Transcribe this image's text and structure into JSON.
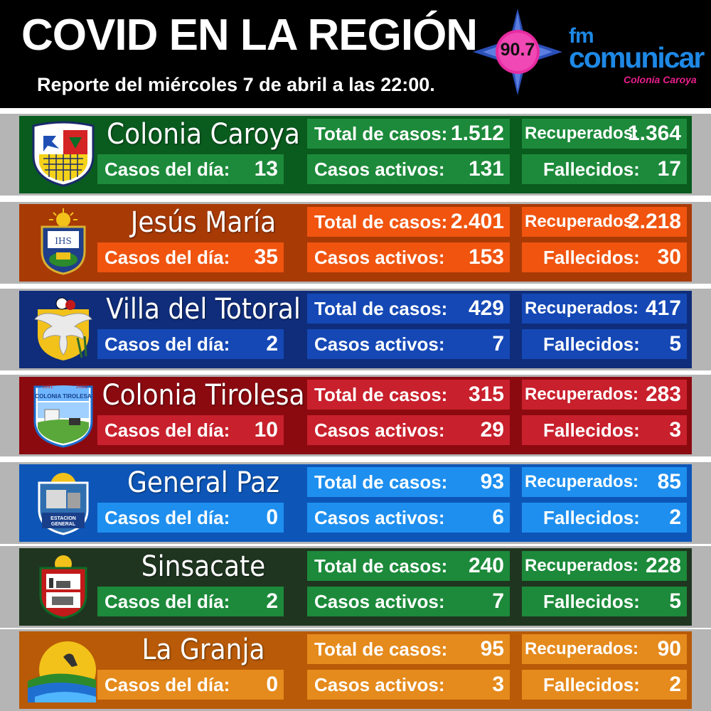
{
  "header": {
    "title": "COVID EN LA REGIÓN",
    "subtitle": "Reporte del miércoles 7 de abril a las 22:00.",
    "radio_frequency": "90.7",
    "logo_fm": "fm",
    "logo_name": "comunicar",
    "logo_city": "Colonia Caroya"
  },
  "labels": {
    "total": "Total de casos:",
    "recovered": "Recuperados:",
    "day": "Casos del día:",
    "active": "Casos activos:",
    "deaths": "Fallecidos:"
  },
  "towns": [
    {
      "name": "Colonia Caroya",
      "total": "1.512",
      "recovered": "1.364",
      "day": "13",
      "active": "131",
      "deaths": "17",
      "band_color": "#0a5b1e",
      "box_color": "#1c8a3a"
    },
    {
      "name": "Jesús María",
      "total": "2.401",
      "recovered": "2.218",
      "day": "35",
      "active": "153",
      "deaths": "30",
      "band_color": "#a83a06",
      "box_color": "#f0540f"
    },
    {
      "name": "Villa del Totoral",
      "total": "429",
      "recovered": "417",
      "day": "2",
      "active": "7",
      "deaths": "5",
      "band_color": "#0f2d7a",
      "box_color": "#1548b5"
    },
    {
      "name": "Colonia Tirolesa",
      "total": "315",
      "recovered": "283",
      "day": "10",
      "active": "29",
      "deaths": "3",
      "band_color": "#8b0a10",
      "box_color": "#c8202c"
    },
    {
      "name": "General Paz",
      "total": "93",
      "recovered": "85",
      "day": "0",
      "active": "6",
      "deaths": "2",
      "band_color": "#0d56b8",
      "box_color": "#1e8fef"
    },
    {
      "name": "Sinsacate",
      "total": "240",
      "recovered": "228",
      "day": "2",
      "active": "7",
      "deaths": "5",
      "band_color": "#1f3520",
      "box_color": "#1c8a3a"
    },
    {
      "name": "La Granja",
      "total": "95",
      "recovered": "90",
      "day": "0",
      "active": "3",
      "deaths": "2",
      "band_color": "#b85a07",
      "box_color": "#e58a1c"
    }
  ]
}
